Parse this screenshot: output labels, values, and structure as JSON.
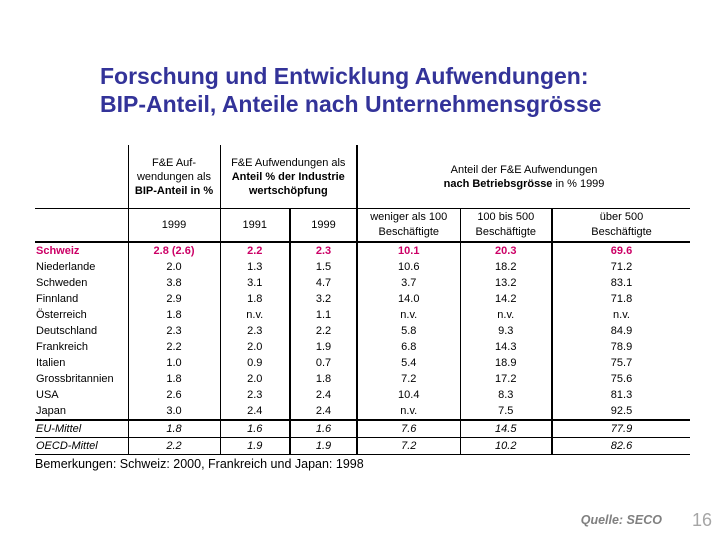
{
  "slide": {
    "title": {
      "line1": "Forschung und Entwicklung Aufwendungen:",
      "line2": "BIP-Anteil, Anteile nach Unternehmensgrösse"
    },
    "note": "Bemerkungen: Schweiz: 2000, Frankreich und Japan: 1998",
    "source": "Quelle: SECO",
    "page_number": "16"
  },
  "colors": {
    "title": "#333399",
    "highlight": "#CC0066",
    "text": "#000000",
    "source": "#808080",
    "page_number": "#A6A6A6"
  },
  "table": {
    "group_headers": {
      "bip": {
        "line1": "F&E Auf-",
        "line2": "wendungen als",
        "line3": "BIP-Anteil in %"
      },
      "industrie": {
        "line1": "F&E Aufwendungen als",
        "line2": "Anteil % der Industrie",
        "line3": "wertschöpfung"
      },
      "betriebsgroesse": {
        "line1": "Anteil der F&E Aufwendungen",
        "line2_bold": "nach Betriebsgrösse",
        "line2_rest": " in % 1999"
      }
    },
    "sub_headers": [
      [
        "1999"
      ],
      [
        "1991"
      ],
      [
        "1999"
      ],
      [
        "weniger als 100",
        "Beschäftigte"
      ],
      [
        "100 bis 500",
        "Beschäftigte"
      ],
      [
        "über 500",
        "Beschäftigte"
      ]
    ],
    "rows": [
      {
        "country": "Schweiz",
        "values": [
          "2.8 (2.6)",
          "2.2",
          "2.3",
          "10.1",
          "20.3",
          "69.6"
        ],
        "style": "highlight"
      },
      {
        "country": "Niederlande",
        "values": [
          "2.0",
          "1.3",
          "1.5",
          "10.6",
          "18.2",
          "71.2"
        ],
        "style": ""
      },
      {
        "country": "Schweden",
        "values": [
          "3.8",
          "3.1",
          "4.7",
          "3.7",
          "13.2",
          "83.1"
        ],
        "style": ""
      },
      {
        "country": "Finnland",
        "values": [
          "2.9",
          "1.8",
          "3.2",
          "14.0",
          "14.2",
          "71.8"
        ],
        "style": ""
      },
      {
        "country": "Österreich",
        "values": [
          "1.8",
          "n.v.",
          "1.1",
          "n.v.",
          "n.v.",
          "n.v."
        ],
        "style": ""
      },
      {
        "country": "Deutschland",
        "values": [
          "2.3",
          "2.3",
          "2.2",
          "5.8",
          "9.3",
          "84.9"
        ],
        "style": ""
      },
      {
        "country": "Frankreich",
        "values": [
          "2.2",
          "2.0",
          "1.9",
          "6.8",
          "14.3",
          "78.9"
        ],
        "style": ""
      },
      {
        "country": "Italien",
        "values": [
          "1.0",
          "0.9",
          "0.7",
          "5.4",
          "18.9",
          "75.7"
        ],
        "style": ""
      },
      {
        "country": "Grossbritannien",
        "values": [
          "1.8",
          "2.0",
          "1.8",
          "7.2",
          "17.2",
          "75.6"
        ],
        "style": ""
      },
      {
        "country": "USA",
        "values": [
          "2.6",
          "2.3",
          "2.4",
          "10.4",
          "8.3",
          "81.3"
        ],
        "style": ""
      },
      {
        "country": "Japan",
        "values": [
          "3.0",
          "2.4",
          "2.4",
          "n.v.",
          "7.5",
          "92.5"
        ],
        "style": ""
      },
      {
        "country": "EU-Mittel",
        "values": [
          "1.8",
          "1.6",
          "1.6",
          "7.6",
          "14.5",
          "77.9"
        ],
        "style": "italic thick-top thin-bottom"
      },
      {
        "country": "OECD-Mittel",
        "values": [
          "2.2",
          "1.9",
          "1.9",
          "7.2",
          "10.2",
          "82.6"
        ],
        "style": "italic thin-bottom"
      }
    ]
  }
}
